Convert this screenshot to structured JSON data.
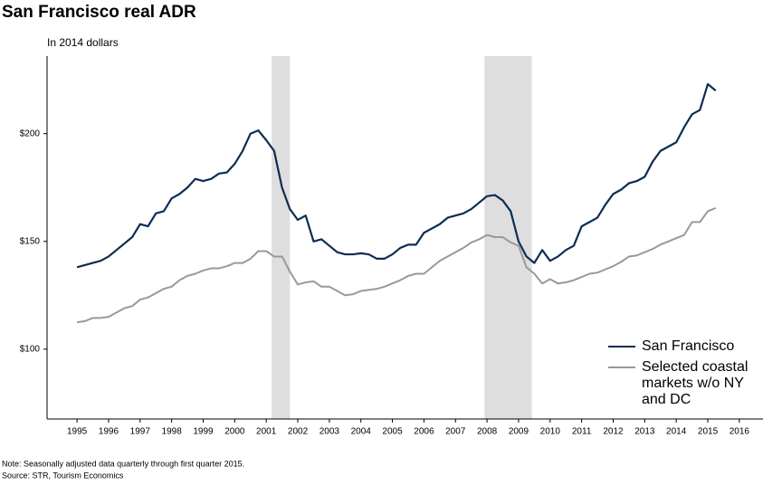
{
  "chart_data": {
    "type": "line",
    "title": "San Francisco real ADR",
    "subtitle": "In 2014 dollars",
    "notes": [
      "Note: Seasonally adjusted data quarterly through first quarter 2015.",
      "Source: STR, Tourism Economics"
    ],
    "x": [
      1995,
      1995.25,
      1995.5,
      1995.75,
      1996,
      1996.25,
      1996.5,
      1996.75,
      1997,
      1997.25,
      1997.5,
      1997.75,
      1998,
      1998.25,
      1998.5,
      1998.75,
      1999,
      1999.25,
      1999.5,
      1999.75,
      2000,
      2000.25,
      2000.5,
      2000.75,
      2001,
      2001.25,
      2001.5,
      2001.75,
      2002,
      2002.25,
      2002.5,
      2002.75,
      2003,
      2003.25,
      2003.5,
      2003.75,
      2004,
      2004.25,
      2004.5,
      2004.75,
      2005,
      2005.25,
      2005.5,
      2005.75,
      2006,
      2006.25,
      2006.5,
      2006.75,
      2007,
      2007.25,
      2007.5,
      2007.75,
      2008,
      2008.25,
      2008.5,
      2008.75,
      2009,
      2009.25,
      2009.5,
      2009.75,
      2010,
      2010.25,
      2010.5,
      2010.75,
      2011,
      2011.25,
      2011.5,
      2011.75,
      2012,
      2012.25,
      2012.5,
      2012.75,
      2013,
      2013.25,
      2013.5,
      2013.75,
      2014,
      2014.25,
      2014.5,
      2014.75,
      2015,
      2015.25
    ],
    "series": [
      {
        "name": "San Francisco",
        "color": "#0d2d52",
        "width": 2.2,
        "values": [
          138,
          139,
          140,
          141,
          143,
          146,
          149,
          152,
          158,
          157,
          163,
          164,
          170,
          172,
          175,
          179,
          178,
          179,
          181.5,
          182,
          186,
          192,
          200,
          201.5,
          197,
          192,
          175,
          165,
          160,
          162,
          150,
          151,
          148,
          145,
          144,
          144,
          144.5,
          144,
          142,
          142,
          144,
          147,
          148.5,
          148.5,
          154,
          156,
          158,
          161,
          162,
          163,
          165,
          168,
          171,
          171.5,
          169,
          164,
          150,
          143,
          140,
          146,
          141,
          143,
          146,
          148,
          157,
          159,
          161,
          167,
          172,
          174,
          177,
          178,
          180,
          187,
          192,
          194,
          196,
          203,
          209,
          211,
          223,
          220
        ]
      },
      {
        "name": "Selected coastal markets w/o NY and DC",
        "color": "#999999",
        "width": 2,
        "values": [
          112.5,
          113,
          114.5,
          114.5,
          115,
          117,
          119,
          120,
          123,
          124,
          126,
          128,
          129,
          132,
          134,
          135,
          136.5,
          137.5,
          137.5,
          138.5,
          140,
          140,
          142,
          145.5,
          145.5,
          143,
          143,
          136,
          130,
          131,
          131.5,
          129,
          129,
          127,
          125,
          125.5,
          127,
          127.5,
          128,
          129,
          130.5,
          132,
          134,
          135,
          135,
          138,
          141,
          143,
          145,
          147,
          149.5,
          151,
          153,
          152,
          152,
          149.5,
          148,
          138,
          135,
          130.5,
          132.5,
          130.5,
          131,
          132,
          133.5,
          135,
          135.5,
          137,
          138.5,
          140.5,
          143,
          143.5,
          145,
          146.5,
          148.5,
          150,
          151.5,
          153,
          159,
          159,
          164,
          165.5
        ]
      }
    ],
    "recessions": [
      [
        2001.17,
        2001.75
      ],
      [
        2007.92,
        2009.42
      ]
    ],
    "recession_color": "#dedede",
    "xlim": [
      1994.05,
      2016.75
    ],
    "xticks": [
      1995,
      1996,
      1997,
      1998,
      1999,
      2000,
      2001,
      2002,
      2003,
      2004,
      2005,
      2006,
      2007,
      2008,
      2009,
      2010,
      2011,
      2012,
      2013,
      2014,
      2015,
      2016
    ],
    "ylim": [
      67.6,
      236
    ],
    "yticks": [
      {
        "value": 100,
        "label": "$100"
      },
      {
        "value": 150,
        "label": "$150"
      },
      {
        "value": 200,
        "label": "$200"
      }
    ],
    "grid": false,
    "legend": "bottom-right"
  }
}
